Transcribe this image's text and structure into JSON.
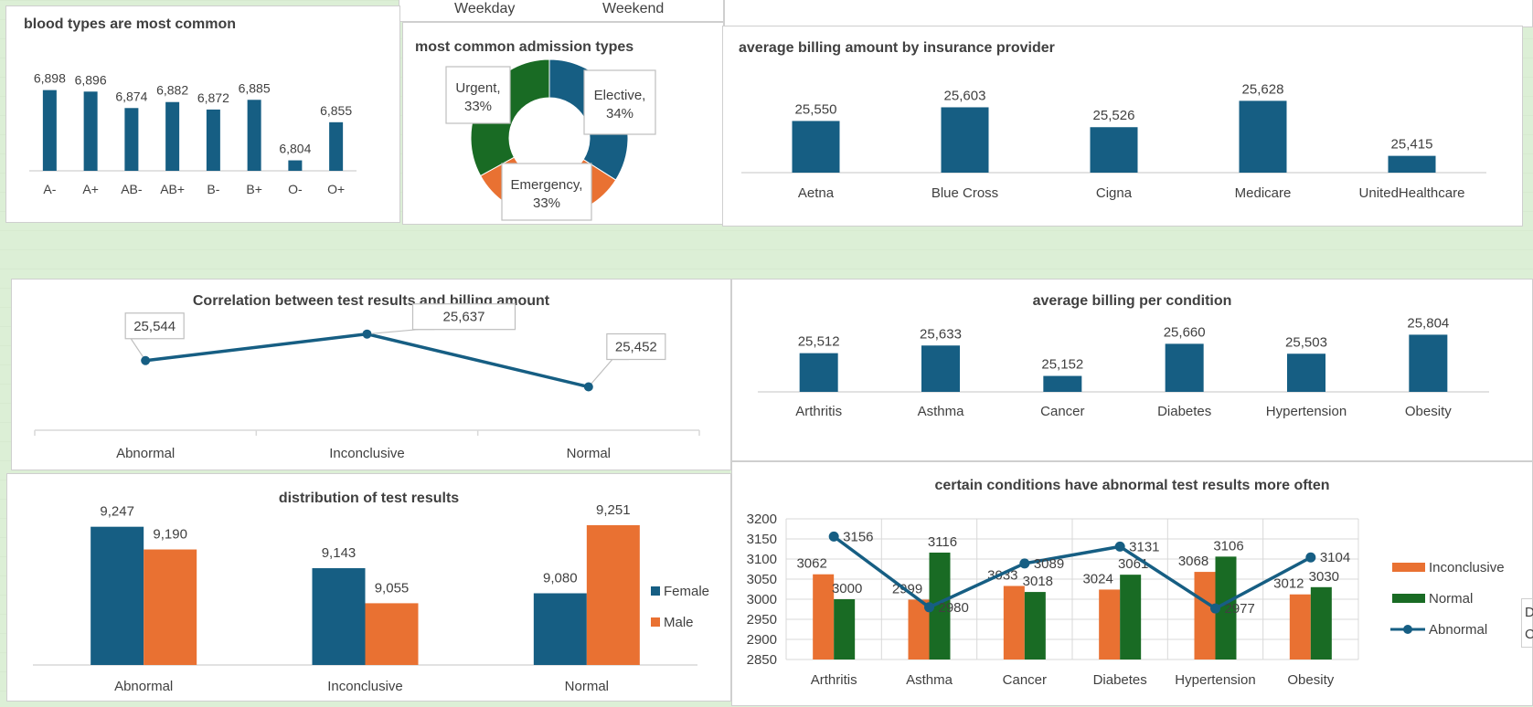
{
  "slicer": {
    "weekday": "Weekday",
    "weekend": "Weekend"
  },
  "colors": {
    "blue": "#165e83",
    "orange": "#e97132",
    "green": "#196b24"
  },
  "panels": {
    "blood_title": "blood types are most common",
    "admission_title": "most common admission types",
    "insurance_title": "average billing amount by insurance provider",
    "correlation_title": "Correlation between test results and billing amount",
    "condition_title": "average billing per condition",
    "distribution_title": "distribution of test results",
    "abnormal_title": "certain conditions have abnormal test results more often"
  },
  "edge_labels": [
    "D",
    "C"
  ],
  "chart_data": [
    {
      "id": "blood",
      "type": "bar",
      "title": "blood types are most common",
      "categories": [
        "A-",
        "A+",
        "AB-",
        "AB+",
        "B-",
        "B+",
        "O-",
        "O+"
      ],
      "values": [
        6898,
        6896,
        6874,
        6882,
        6872,
        6885,
        6804,
        6855
      ],
      "labels": [
        "6,898",
        "6,896",
        "6,874",
        "6,882",
        "6,872",
        "6,885",
        "6,804",
        "6,855"
      ],
      "ylim": [
        6790,
        6900
      ]
    },
    {
      "id": "admission",
      "type": "pie",
      "title": "most common admission types",
      "slices": [
        {
          "name": "Elective",
          "value": 34,
          "label": "Elective, 34%"
        },
        {
          "name": "Emergency",
          "value": 33,
          "label": "Emergency , 33%"
        },
        {
          "name": "Urgent",
          "value": 33,
          "label": "Urgent, 33%"
        }
      ]
    },
    {
      "id": "insurance",
      "type": "bar",
      "title": "average billing amount by insurance provider",
      "categories": [
        "Aetna",
        "Blue Cross",
        "Cigna",
        "Medicare",
        "UnitedHealthcare"
      ],
      "values": [
        25550,
        25603,
        25526,
        25628,
        25415
      ],
      "labels": [
        "25,550",
        "25,603",
        "25,526",
        "25,628",
        "25,415"
      ],
      "ylim": [
        25350,
        25640
      ]
    },
    {
      "id": "correlation",
      "type": "line",
      "title": "Correlation between test results and billing amount",
      "categories": [
        "Abnormal",
        "Inconclusive",
        "Normal"
      ],
      "values": [
        25544,
        25637,
        25452
      ],
      "labels": [
        "25,544",
        "25,637",
        "25,452"
      ],
      "ylim": [
        25300,
        25700
      ]
    },
    {
      "id": "condition",
      "type": "bar",
      "title": "average billing per condition",
      "categories": [
        "Arthritis",
        "Asthma",
        "Cancer",
        "Diabetes",
        "Hypertension",
        "Obesity"
      ],
      "values": [
        25512,
        25633,
        25152,
        25660,
        25503,
        25804
      ],
      "labels": [
        "25,512",
        "25,633",
        "25,152",
        "25,660",
        "25,503",
        "25,804"
      ],
      "ylim": [
        24900,
        25810
      ]
    },
    {
      "id": "distribution",
      "type": "bar",
      "title": "distribution of test results",
      "categories": [
        "Abnormal",
        "Inconclusive",
        "Normal"
      ],
      "series": [
        {
          "name": "Female",
          "values": [
            9247,
            9143,
            9080
          ],
          "labels": [
            "9,247",
            "9,143",
            "9,080"
          ]
        },
        {
          "name": "Male",
          "values": [
            9190,
            9055,
            9251
          ],
          "labels": [
            "9,190",
            "9,055",
            "9,251"
          ]
        }
      ],
      "ylim": [
        8900,
        9260
      ],
      "legend": "right"
    },
    {
      "id": "abnormal",
      "type": "bar",
      "title": "certain conditions have abnormal test results more often",
      "categories": [
        "Arthritis",
        "Asthma",
        "Cancer",
        "Diabetes",
        "Hypertension",
        "Obesity"
      ],
      "series": [
        {
          "name": "Inconclusive",
          "values": [
            3062,
            2999,
            3033,
            3024,
            3068,
            3012
          ],
          "labels": [
            "3062",
            "2999",
            "3033",
            "3024",
            "3068",
            "3012"
          ]
        },
        {
          "name": "Normal",
          "values": [
            3000,
            3116,
            3018,
            3061,
            3106,
            3030
          ],
          "labels": [
            "3000",
            "3116",
            "3018",
            "3061",
            "3106",
            "3030"
          ]
        },
        {
          "name": "Abnormal",
          "values": [
            3156,
            2980,
            3089,
            3131,
            2977,
            3104
          ],
          "labels": [
            "3156",
            "2980",
            "3089",
            "3131",
            "2977",
            "3104"
          ],
          "type": "line"
        }
      ],
      "yticks": [
        2850,
        2900,
        2950,
        3000,
        3050,
        3100,
        3150,
        3200
      ],
      "ylim": [
        2850,
        3200
      ],
      "grid": true,
      "legend": "right"
    }
  ]
}
